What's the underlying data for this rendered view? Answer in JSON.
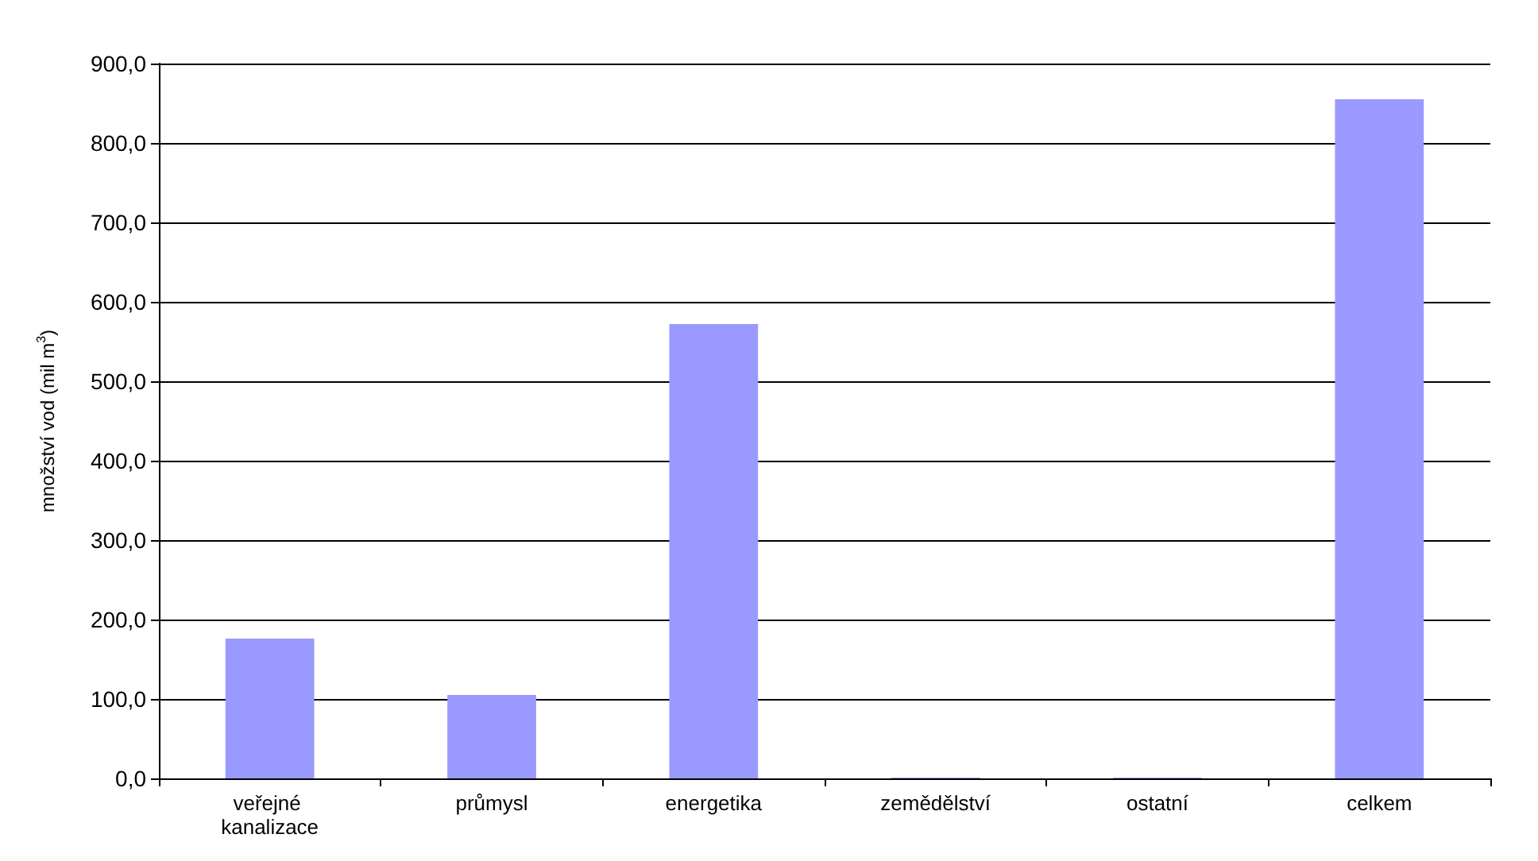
{
  "chart_data": {
    "type": "bar",
    "ylabel": "množství vod (mil m$^{3}$)",
    "categories": [
      "veřejné kanalizace",
      "průmysl",
      "energetika",
      "zemědělství",
      "ostatní",
      "celkem"
    ],
    "values": [
      176,
      105,
      572,
      1,
      1,
      855
    ],
    "color": "#9999ff",
    "ylim": [
      0,
      900
    ],
    "yticks": [
      {
        "value": 0,
        "label": "0,0"
      },
      {
        "value": 100,
        "label": "100,0"
      },
      {
        "value": 200,
        "label": "200,0"
      },
      {
        "value": 300,
        "label": "300,0"
      },
      {
        "value": 400,
        "label": "400,0"
      },
      {
        "value": 500,
        "label": "500,0"
      },
      {
        "value": 600,
        "label": "600,0"
      },
      {
        "value": 700,
        "label": "700,0"
      },
      {
        "value": 800,
        "label": "800,0"
      },
      {
        "value": 900,
        "label": "900,0"
      }
    ],
    "grid": "y"
  }
}
